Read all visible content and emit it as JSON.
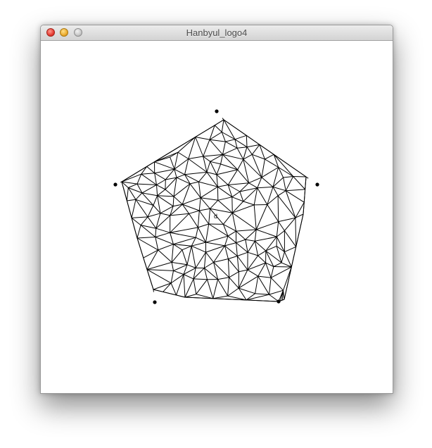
{
  "window": {
    "title": "Hanbyul_logo4",
    "controls": [
      "close",
      "minimize",
      "zoom"
    ]
  },
  "sketch": {
    "description_label": "",
    "center_label": "d",
    "stroke_color": "#000000",
    "background_color": "#ffffff"
  },
  "colors": {
    "titlebar_top": "#ececec",
    "titlebar_bottom": "#d3d3d3",
    "close": "#e3352c",
    "minimize": "#e9a728",
    "zoom": "#c4c4c4"
  }
}
